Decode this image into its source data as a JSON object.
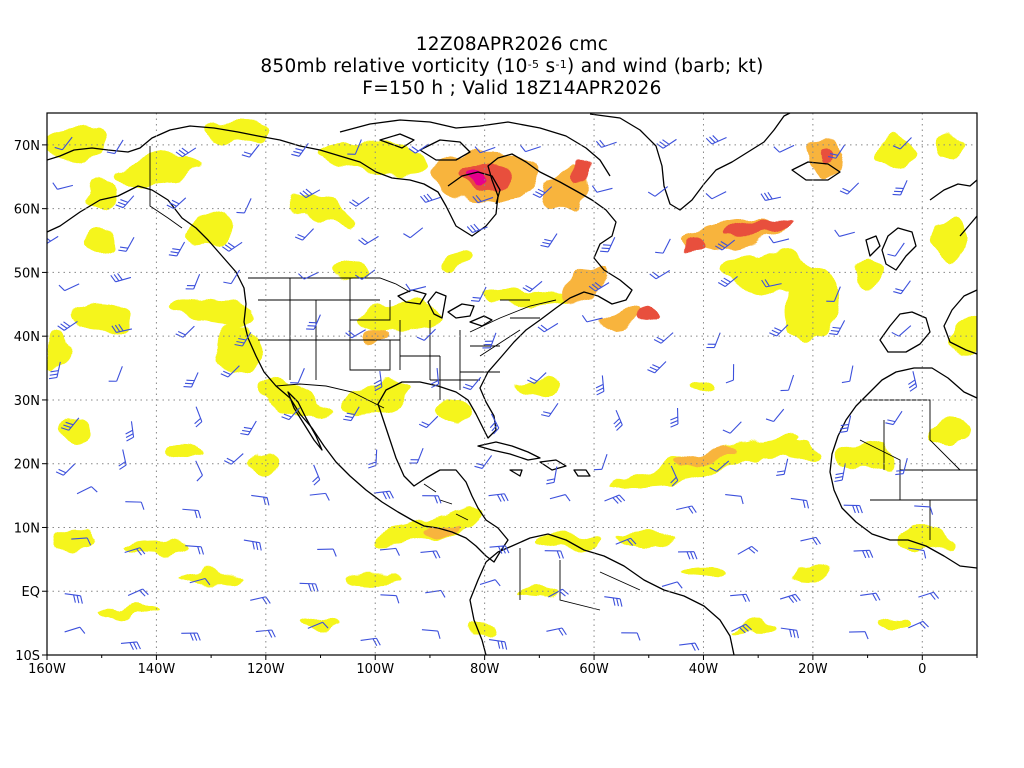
{
  "title": {
    "line1": "12Z08APR2026 cmc",
    "line2_prefix": "850mb relative vorticity (10",
    "line2_exp1": "-5",
    "line2_mid": " s",
    "line2_exp2": "-1",
    "line2_suffix": ") and wind (barb; kt)",
    "line3": "F=150 h ; Valid 18Z14APR2026"
  },
  "map": {
    "type": "map",
    "projection": "cylindrical-equidistant",
    "lon_range": [
      -160,
      10
    ],
    "lat_range": [
      -10,
      75
    ],
    "grid": "dotted",
    "x_ticks": [
      "160W",
      "140W",
      "120W",
      "100W",
      "80W",
      "60W",
      "40W",
      "20W",
      "0"
    ],
    "y_ticks": [
      "70N",
      "60N",
      "50N",
      "40N",
      "30N",
      "20N",
      "10N",
      "EQ",
      "10S"
    ],
    "x_tick_lons": [
      -160,
      -140,
      -120,
      -100,
      -80,
      -60,
      -40,
      -20,
      0
    ],
    "y_tick_lats": [
      70,
      60,
      50,
      40,
      30,
      20,
      10,
      0,
      -10
    ],
    "colors": {
      "vort_low": "#f5f51e",
      "vort_mid": "#f8b43c",
      "vort_high": "#e8503c",
      "vort_peak": "#e6008c",
      "barb": "#3c50dc",
      "coast": "#000000",
      "grid": "#888888"
    }
  }
}
